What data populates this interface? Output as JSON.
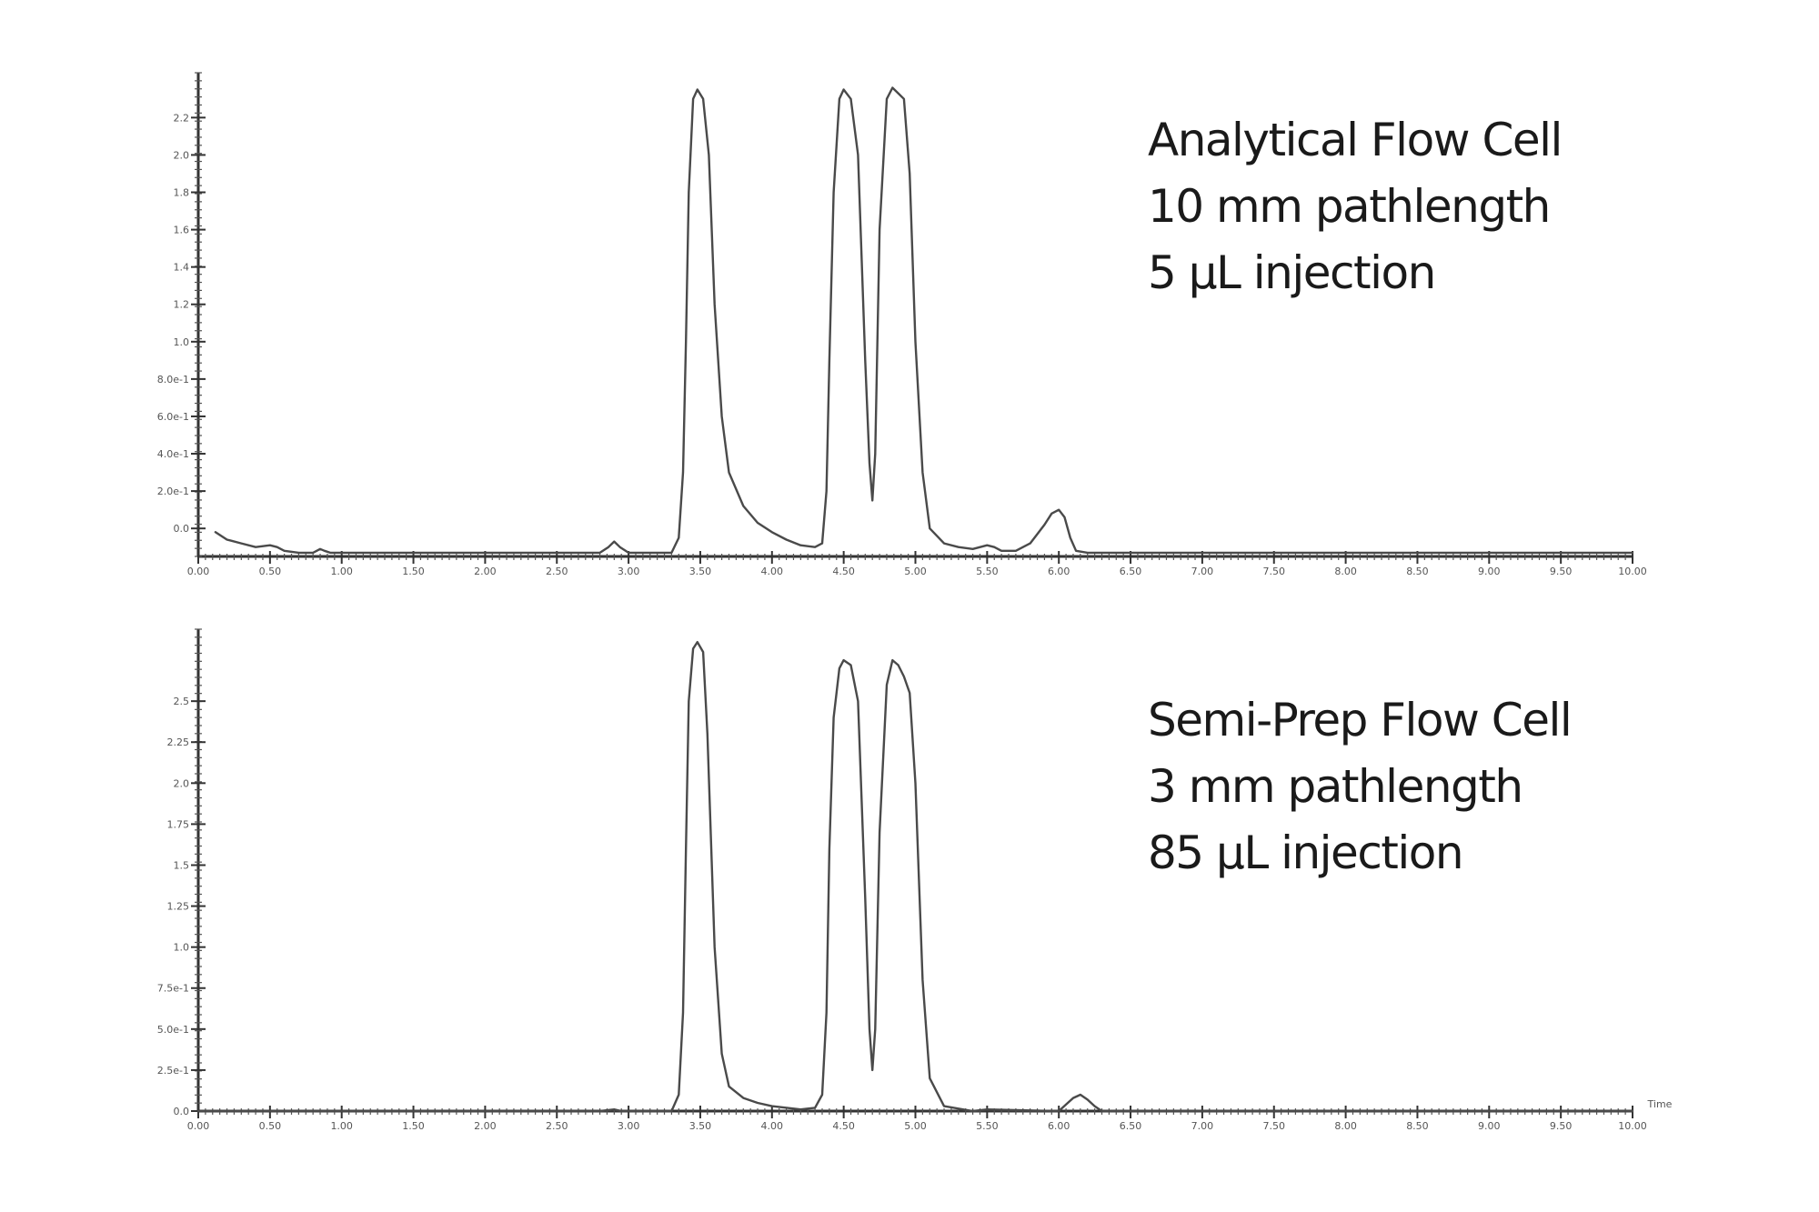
{
  "chart_data": [
    {
      "type": "line",
      "annotation": [
        "Analytical Flow Cell",
        "10 mm pathlength",
        "5 µL injection"
      ],
      "x_ticks": [
        "0.00",
        "0.50",
        "1.00",
        "1.50",
        "2.00",
        "2.50",
        "3.00",
        "3.50",
        "4.00",
        "4.50",
        "5.00",
        "5.50",
        "6.00",
        "6.50",
        "7.00",
        "7.50",
        "8.00",
        "8.50",
        "9.00",
        "9.50",
        "10.00"
      ],
      "y_ticks": [
        "0.0",
        "2.0e-1",
        "4.0e-1",
        "6.0e-1",
        "8.0e-1",
        "1.0",
        "1.2",
        "1.4",
        "1.6",
        "1.8",
        "2.0",
        "2.2"
      ],
      "xlim": [
        0,
        10
      ],
      "ylim": [
        -0.15,
        2.45
      ],
      "series": [
        {
          "x": [
            0.12,
            0.2,
            0.3,
            0.4,
            0.5,
            0.55,
            0.6,
            0.7,
            0.8,
            0.85,
            0.88,
            0.92,
            1.0,
            1.5,
            2.0,
            2.5,
            2.8,
            2.86,
            2.9,
            2.94,
            3.0,
            3.3,
            3.35,
            3.38,
            3.4,
            3.42,
            3.45,
            3.48,
            3.52,
            3.56,
            3.6,
            3.65,
            3.7,
            3.8,
            3.9,
            4.0,
            4.1,
            4.2,
            4.3,
            4.35,
            4.38,
            4.4,
            4.43,
            4.47,
            4.5,
            4.55,
            4.6,
            4.65,
            4.68,
            4.7,
            4.72,
            4.75,
            4.8,
            4.84,
            4.88,
            4.92,
            4.96,
            5.0,
            5.05,
            5.1,
            5.2,
            5.3,
            5.4,
            5.5,
            5.55,
            5.6,
            5.7,
            5.8,
            5.9,
            5.95,
            6.0,
            6.04,
            6.08,
            6.12,
            6.2,
            6.5,
            7.0,
            8.0,
            9.0,
            10.0
          ],
          "y": [
            -0.02,
            -0.06,
            -0.08,
            -0.1,
            -0.09,
            -0.1,
            -0.12,
            -0.13,
            -0.13,
            -0.11,
            -0.12,
            -0.13,
            -0.13,
            -0.13,
            -0.13,
            -0.13,
            -0.13,
            -0.1,
            -0.07,
            -0.1,
            -0.13,
            -0.13,
            -0.05,
            0.3,
            1.0,
            1.8,
            2.3,
            2.35,
            2.3,
            2.0,
            1.2,
            0.6,
            0.3,
            0.12,
            0.03,
            -0.02,
            -0.06,
            -0.09,
            -0.1,
            -0.08,
            0.2,
            0.9,
            1.8,
            2.3,
            2.35,
            2.3,
            2.0,
            0.9,
            0.35,
            0.15,
            0.4,
            1.6,
            2.3,
            2.36,
            2.33,
            2.3,
            1.9,
            1.0,
            0.3,
            0.0,
            -0.08,
            -0.1,
            -0.11,
            -0.09,
            -0.1,
            -0.12,
            -0.12,
            -0.08,
            0.02,
            0.08,
            0.1,
            0.06,
            -0.05,
            -0.12,
            -0.13,
            -0.13,
            -0.13,
            -0.13,
            -0.13,
            -0.13
          ]
        }
      ]
    },
    {
      "type": "line",
      "annotation": [
        "Semi-Prep Flow Cell",
        "3 mm pathlength",
        "85 µL injection"
      ],
      "x_ticks": [
        "0.00",
        "0.50",
        "1.00",
        "1.50",
        "2.00",
        "2.50",
        "3.00",
        "3.50",
        "4.00",
        "4.50",
        "5.00",
        "5.50",
        "6.00",
        "6.50",
        "7.00",
        "7.50",
        "8.00",
        "8.50",
        "9.00",
        "9.50",
        "10.00"
      ],
      "x_unit": "Time",
      "y_ticks": [
        "0.0",
        "2.5e-1",
        "5.0e-1",
        "7.5e-1",
        "1.0",
        "1.25",
        "1.5",
        "1.75",
        "2.0",
        "2.25",
        "2.5"
      ],
      "xlim": [
        0,
        10
      ],
      "ylim": [
        0,
        2.95
      ],
      "series": [
        {
          "x": [
            0.0,
            0.5,
            1.0,
            2.0,
            2.8,
            2.9,
            2.95,
            3.3,
            3.35,
            3.38,
            3.4,
            3.42,
            3.45,
            3.48,
            3.52,
            3.55,
            3.6,
            3.65,
            3.7,
            3.8,
            3.9,
            4.0,
            4.2,
            4.3,
            4.35,
            4.38,
            4.4,
            4.43,
            4.47,
            4.5,
            4.55,
            4.6,
            4.65,
            4.68,
            4.7,
            4.72,
            4.75,
            4.8,
            4.84,
            4.88,
            4.92,
            4.96,
            5.0,
            5.05,
            5.1,
            5.2,
            5.4,
            5.5,
            6.0,
            6.05,
            6.1,
            6.15,
            6.2,
            6.25,
            6.3,
            6.5,
            7.0,
            8.0,
            9.0,
            10.0
          ],
          "y": [
            0.0,
            0.0,
            0.0,
            0.0,
            0.0,
            0.01,
            0.0,
            0.0,
            0.1,
            0.6,
            1.6,
            2.5,
            2.82,
            2.86,
            2.8,
            2.3,
            1.0,
            0.35,
            0.15,
            0.08,
            0.05,
            0.03,
            0.01,
            0.02,
            0.1,
            0.6,
            1.6,
            2.4,
            2.7,
            2.75,
            2.72,
            2.5,
            1.3,
            0.5,
            0.25,
            0.5,
            1.7,
            2.6,
            2.75,
            2.72,
            2.65,
            2.55,
            2.0,
            0.8,
            0.2,
            0.03,
            0.0,
            0.01,
            0.0,
            0.04,
            0.08,
            0.1,
            0.07,
            0.03,
            0.0,
            0.0,
            0.0,
            0.0,
            0.0,
            0.0
          ]
        }
      ]
    }
  ]
}
